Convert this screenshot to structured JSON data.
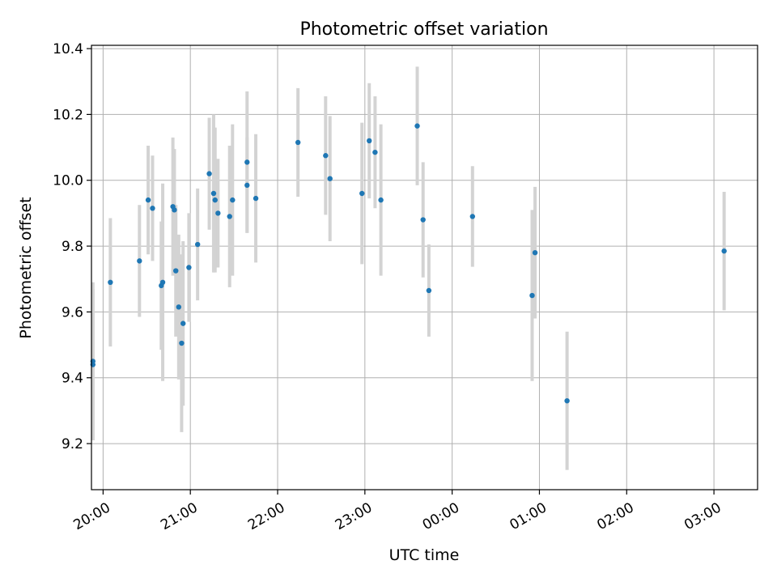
{
  "chart_data": {
    "type": "scatter",
    "title": "Photometric offset variation",
    "xlabel": "UTC time",
    "ylabel": "Photometric offset",
    "xlim": [
      "19:52",
      "03:30"
    ],
    "ylim": [
      9.06,
      10.41
    ],
    "x_ticks": [
      "20:00",
      "21:00",
      "22:00",
      "23:00",
      "00:00",
      "01:00",
      "02:00",
      "03:00"
    ],
    "y_ticks": [
      9.2,
      9.4,
      9.6,
      9.8,
      10.0,
      10.2,
      10.4
    ],
    "grid": true,
    "colors": {
      "points": "#1f77b4",
      "errorbars": "#d3d3d3",
      "grid": "#b0b0b0",
      "axes": "#000000"
    },
    "points": [
      {
        "x": "19:53",
        "y": 9.45,
        "err": 0.24
      },
      {
        "x": "19:53",
        "y": 9.44,
        "err": 0.23
      },
      {
        "x": "20:05",
        "y": 9.69,
        "err": 0.195
      },
      {
        "x": "20:25",
        "y": 9.755,
        "err": 0.17
      },
      {
        "x": "20:31",
        "y": 9.94,
        "err": 0.165
      },
      {
        "x": "20:34",
        "y": 9.915,
        "err": 0.16
      },
      {
        "x": "20:40",
        "y": 9.68,
        "err": 0.195
      },
      {
        "x": "20:41",
        "y": 9.69,
        "err": 0.3
      },
      {
        "x": "20:48",
        "y": 9.92,
        "err": 0.21
      },
      {
        "x": "20:49",
        "y": 9.91,
        "err": 0.185
      },
      {
        "x": "20:50",
        "y": 9.725,
        "err": 0.2
      },
      {
        "x": "20:52",
        "y": 9.615,
        "err": 0.22
      },
      {
        "x": "20:54",
        "y": 9.505,
        "err": 0.27
      },
      {
        "x": "20:55",
        "y": 9.565,
        "err": 0.25
      },
      {
        "x": "20:59",
        "y": 9.735,
        "err": 0.165
      },
      {
        "x": "21:05",
        "y": 9.805,
        "err": 0.17
      },
      {
        "x": "21:13",
        "y": 10.02,
        "err": 0.17
      },
      {
        "x": "21:16",
        "y": 9.96,
        "err": 0.24
      },
      {
        "x": "21:17",
        "y": 9.94,
        "err": 0.22
      },
      {
        "x": "21:19",
        "y": 9.9,
        "err": 0.165
      },
      {
        "x": "21:27",
        "y": 9.89,
        "err": 0.215
      },
      {
        "x": "21:29",
        "y": 9.94,
        "err": 0.23
      },
      {
        "x": "21:39",
        "y": 10.055,
        "err": 0.215
      },
      {
        "x": "21:39",
        "y": 9.985,
        "err": 0.145
      },
      {
        "x": "21:45",
        "y": 9.945,
        "err": 0.195
      },
      {
        "x": "22:14",
        "y": 10.115,
        "err": 0.165
      },
      {
        "x": "22:33",
        "y": 10.075,
        "err": 0.18
      },
      {
        "x": "22:36",
        "y": 10.005,
        "err": 0.19
      },
      {
        "x": "22:58",
        "y": 9.96,
        "err": 0.215
      },
      {
        "x": "23:03",
        "y": 10.12,
        "err": 0.175
      },
      {
        "x": "23:07",
        "y": 10.085,
        "err": 0.17
      },
      {
        "x": "23:11",
        "y": 9.94,
        "err": 0.23
      },
      {
        "x": "23:36",
        "y": 10.165,
        "err": 0.18
      },
      {
        "x": "23:40",
        "y": 9.88,
        "err": 0.175
      },
      {
        "x": "23:44",
        "y": 9.665,
        "err": 0.14
      },
      {
        "x": "00:14",
        "y": 9.89,
        "err": 0.153
      },
      {
        "x": "00:55",
        "y": 9.65,
        "err": 0.26
      },
      {
        "x": "00:57",
        "y": 9.78,
        "err": 0.2
      },
      {
        "x": "01:19",
        "y": 9.33,
        "err": 0.21
      },
      {
        "x": "03:07",
        "y": 9.785,
        "err": 0.18
      }
    ]
  }
}
